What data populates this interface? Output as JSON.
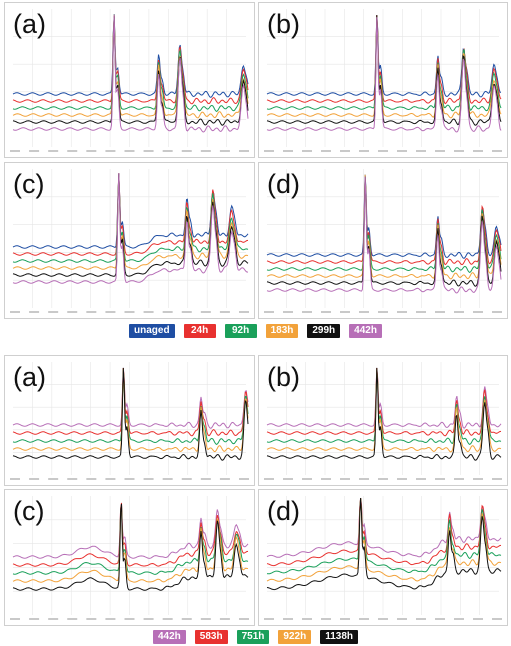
{
  "groups": [
    {
      "series": [
        {
          "name": "unaged",
          "color": "#1f4ea3"
        },
        {
          "name": "24h",
          "color": "#e8312f"
        },
        {
          "name": "92h",
          "color": "#1aa05a"
        },
        {
          "name": "183h",
          "color": "#f2a23a"
        },
        {
          "name": "299h",
          "color": "#111111"
        },
        {
          "name": "442h",
          "color": "#b76fb7"
        }
      ],
      "panels": [
        {
          "label": "(a)"
        },
        {
          "label": "(b)"
        },
        {
          "label": "(c)"
        },
        {
          "label": "(d)"
        }
      ]
    },
    {
      "series": [
        {
          "name": "442h",
          "color": "#b76fb7"
        },
        {
          "name": "583h",
          "color": "#e8312f"
        },
        {
          "name": "751h",
          "color": "#1aa05a"
        },
        {
          "name": "922h",
          "color": "#f2a23a"
        },
        {
          "name": "1138h",
          "color": "#111111"
        }
      ],
      "panels": [
        {
          "label": "(a)"
        },
        {
          "label": "(b)"
        },
        {
          "label": "(c)"
        },
        {
          "label": "(d)"
        }
      ]
    }
  ],
  "chart_data": [
    {
      "type": "line",
      "panel": "(a)",
      "group": 1,
      "series": [
        "unaged",
        "24h",
        "92h",
        "183h",
        "299h",
        "442h"
      ],
      "peaks": [
        0.43,
        0.62,
        0.71,
        0.98
      ],
      "baseline_level": "flat"
    },
    {
      "type": "line",
      "panel": "(b)",
      "group": 1,
      "series": [
        "unaged",
        "24h",
        "92h",
        "183h",
        "299h",
        "442h"
      ],
      "peaks": [
        0.47,
        0.73,
        0.84,
        0.97
      ],
      "baseline_level": "flat"
    },
    {
      "type": "line",
      "panel": "(c)",
      "group": 1,
      "series": [
        "unaged",
        "24h",
        "92h",
        "183h",
        "299h",
        "442h"
      ],
      "peaks": [
        0.45,
        0.74,
        0.85,
        0.93
      ],
      "baseline_level": "step-up"
    },
    {
      "type": "line",
      "panel": "(d)",
      "group": 1,
      "series": [
        "unaged",
        "24h",
        "92h",
        "183h",
        "299h",
        "442h"
      ],
      "peaks": [
        0.42,
        0.73,
        0.92,
        0.98
      ],
      "baseline_level": "flat"
    },
    {
      "type": "line",
      "panel": "(a)",
      "group": 2,
      "series": [
        "442h",
        "583h",
        "751h",
        "922h",
        "1138h"
      ],
      "peaks": [
        0.47,
        0.8,
        0.99
      ],
      "baseline_level": "flat"
    },
    {
      "type": "line",
      "panel": "(b)",
      "group": 2,
      "series": [
        "442h",
        "583h",
        "751h",
        "922h",
        "1138h"
      ],
      "peaks": [
        0.47,
        0.81,
        0.93
      ],
      "baseline_level": "flat"
    },
    {
      "type": "line",
      "panel": "(c)",
      "group": 2,
      "series": [
        "442h",
        "583h",
        "751h",
        "922h",
        "1138h"
      ],
      "peaks": [
        0.46,
        0.8,
        0.87,
        0.95
      ],
      "baseline_level": "bump"
    },
    {
      "type": "line",
      "panel": "(d)",
      "group": 2,
      "series": [
        "442h",
        "583h",
        "751h",
        "922h",
        "1138h"
      ],
      "peaks": [
        0.4,
        0.78,
        0.92
      ],
      "baseline_level": "plateau"
    }
  ]
}
